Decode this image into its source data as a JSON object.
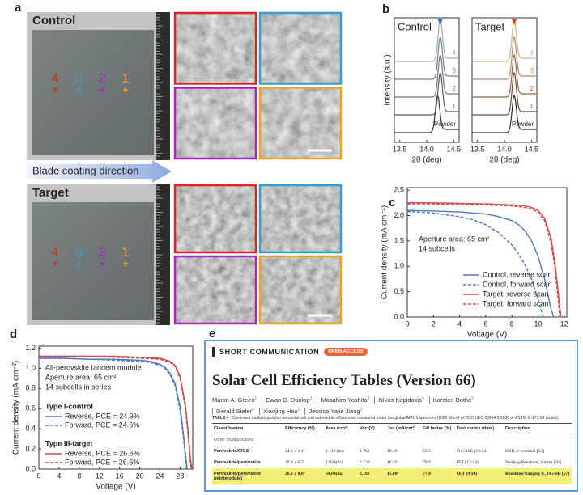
{
  "panel_labels": [
    "a",
    "b",
    "c",
    "d",
    "e"
  ],
  "panel_a": {
    "control": "Control",
    "target": "Target",
    "points": [
      "4",
      "3",
      "2",
      "1"
    ],
    "point_colors": [
      "#e0241f",
      "#2f9fd8",
      "#a624c8",
      "#f0a21e"
    ],
    "arrow": "Blade coating direction"
  },
  "chart_data": [
    {
      "type": "spectra",
      "title": "Control",
      "xlabel": "2θ (deg)",
      "ylabel": "Intensity (a.u.)",
      "xlim": [
        13.4,
        14.6
      ],
      "xticks": [
        13.5,
        {
          "value": 14,
          "label": "14.0"
        },
        14.5
      ],
      "marker": {
        "x": 14.25,
        "color": "#3a6fd8"
      },
      "series": [
        {
          "name": "Powder",
          "color": "#333333",
          "peak": 14.2
        },
        {
          "name": "1",
          "color": "#5a5a5a",
          "peak": 14.25
        },
        {
          "name": "2",
          "color": "#7a6f88",
          "peak": 14.25
        },
        {
          "name": "3",
          "color": "#6c7f98",
          "peak": 14.25
        },
        {
          "name": "4",
          "color": "#a8a8a8",
          "peak": 14.25
        }
      ]
    },
    {
      "type": "spectra",
      "title": "Target",
      "xlabel": "2θ (deg)",
      "xlim": [
        13.4,
        14.6
      ],
      "xticks": [
        13.5,
        {
          "value": 14,
          "label": "14.0"
        },
        14.5
      ],
      "marker": {
        "x": 14.18,
        "color": "#e0403a"
      },
      "series": [
        {
          "name": "Powder",
          "color": "#2a2a2a",
          "peak": 14.18
        },
        {
          "name": "1",
          "color": "#6e4a3a",
          "peak": 14.18
        },
        {
          "name": "2",
          "color": "#93634a",
          "peak": 14.18
        },
        {
          "name": "3",
          "color": "#b58a6a",
          "peak": 14.18
        },
        {
          "name": "4",
          "color": "#d4b48e",
          "peak": 14.18
        }
      ]
    },
    {
      "type": "line",
      "xlabel": "Voltage (V)",
      "ylabel": "Current density (mA cm⁻²)",
      "xlim": [
        0,
        12.2
      ],
      "xticks": [
        0,
        2,
        4,
        6,
        8,
        10,
        12
      ],
      "ylim": [
        0,
        2.55
      ],
      "yticks": [
        {
          "value": 0,
          "label": "0.0"
        },
        0.5,
        {
          "value": 1,
          "label": "1.0"
        },
        1.5,
        {
          "value": 2,
          "label": "2.0"
        },
        2.5
      ],
      "annotations": [
        "Aperture area: 65 cm²",
        "14 subcells"
      ],
      "legend": "lower right",
      "series": [
        {
          "name": "Control, reverse scan",
          "color": "#4a78c0",
          "dash": false,
          "x": [
            0,
            2,
            4,
            6,
            7,
            8,
            8.5,
            9,
            9.5,
            10,
            10.5,
            11,
            11.2
          ],
          "values": [
            2.1,
            2.09,
            2.07,
            2.03,
            1.98,
            1.9,
            1.82,
            1.7,
            1.5,
            1.2,
            0.75,
            0.15,
            0
          ]
        },
        {
          "name": "Control, forward scan",
          "color": "#4a78c0",
          "dash": true,
          "x": [
            0,
            2,
            4,
            5,
            6,
            7,
            8,
            8.5,
            9,
            9.5,
            10,
            10.4
          ],
          "values": [
            2.08,
            2.05,
            1.98,
            1.92,
            1.82,
            1.66,
            1.42,
            1.25,
            1.03,
            0.75,
            0.35,
            0
          ]
        },
        {
          "name": "Target, reverse scan",
          "color": "#d04a4a",
          "dash": false,
          "x": [
            0,
            2,
            4,
            6,
            8,
            9,
            9.5,
            10,
            10.5,
            11,
            11.3,
            11.6,
            11.75
          ],
          "values": [
            2.25,
            2.25,
            2.24,
            2.23,
            2.21,
            2.19,
            2.16,
            2.1,
            1.95,
            1.55,
            1.05,
            0.35,
            0
          ]
        },
        {
          "name": "Target, forward scan",
          "color": "#d04a4a",
          "dash": true,
          "x": [
            0,
            2,
            4,
            6,
            8,
            9,
            9.5,
            10,
            10.5,
            11,
            11.3,
            11.5,
            11.65
          ],
          "values": [
            2.23,
            2.23,
            2.22,
            2.21,
            2.19,
            2.16,
            2.13,
            2.06,
            1.9,
            1.45,
            0.95,
            0.45,
            0
          ]
        }
      ]
    },
    {
      "type": "line",
      "xlabel": "Voltage (V)",
      "ylabel": "Current density (mA cm⁻²)",
      "xlim": [
        0,
        30.5
      ],
      "xticks": [
        0,
        4,
        8,
        12,
        16,
        20,
        24,
        28
      ],
      "ylim": [
        0,
        1.22
      ],
      "yticks": [
        {
          "value": 0,
          "label": "0.0"
        },
        0.2,
        0.4,
        0.6,
        0.8,
        {
          "value": 1,
          "label": "1.0"
        },
        1.2
      ],
      "annotations": [
        "All-perovskite tandem module",
        "Aperture area: 65 cm²",
        "14 subcells in series"
      ],
      "legend": "upper left",
      "legend_groups": [
        "Type I-control",
        "Type III-target"
      ],
      "series": [
        {
          "name": "Reverse, PCE = 24.9%",
          "color": "#4a78c0",
          "dash": false,
          "x": [
            0,
            5,
            10,
            15,
            20,
            22,
            24,
            25,
            26,
            27,
            28,
            28.5,
            29,
            29.4
          ],
          "values": [
            1.1,
            1.1,
            1.09,
            1.09,
            1.08,
            1.07,
            1.04,
            1.01,
            0.95,
            0.85,
            0.62,
            0.42,
            0.18,
            0
          ]
        },
        {
          "name": "Forward, PCE = 24.6%",
          "color": "#4a78c0",
          "dash": true,
          "x": [
            0,
            5,
            10,
            15,
            20,
            22,
            24,
            25,
            26,
            27,
            28,
            28.5,
            29,
            29.3
          ],
          "values": [
            1.1,
            1.1,
            1.09,
            1.08,
            1.07,
            1.06,
            1.03,
            1.0,
            0.94,
            0.83,
            0.58,
            0.38,
            0.14,
            0
          ]
        },
        {
          "name": "Reverse, PCE = 26.6%",
          "color": "#d04a4a",
          "dash": false,
          "x": [
            0,
            5,
            10,
            15,
            20,
            24,
            26,
            27,
            28,
            29,
            29.5,
            30,
            30.3
          ],
          "values": [
            1.12,
            1.12,
            1.12,
            1.12,
            1.11,
            1.1,
            1.07,
            1.03,
            0.92,
            0.65,
            0.42,
            0.12,
            0
          ]
        },
        {
          "name": "Forward, PCE = 26.6%",
          "color": "#d04a4a",
          "dash": true,
          "x": [
            0,
            5,
            10,
            15,
            20,
            24,
            26,
            27,
            28,
            29,
            29.5,
            30,
            30.2
          ],
          "values": [
            1.12,
            1.12,
            1.12,
            1.11,
            1.1,
            1.09,
            1.06,
            1.02,
            0.9,
            0.62,
            0.38,
            0.08,
            0
          ]
        }
      ]
    }
  ],
  "panel_e": {
    "section": "SHORT COMMUNICATION",
    "badge": "OPEN ACCESS",
    "title": "Solar Cell Efficiency Tables (Version 66)",
    "authors": [
      {
        "name": "Martin A. Green",
        "affil": "1"
      },
      {
        "name": "Ewan D. Dunlop",
        "affil": "2"
      },
      {
        "name": "Masahiro Yoshita",
        "affil": "3"
      },
      {
        "name": "Nikos Kopidakis",
        "affil": "4"
      },
      {
        "name": "Karsten Bothe",
        "affil": "5"
      },
      {
        "name": "Gerald Siefer",
        "affil": "6"
      },
      {
        "name": "Xiaojing Hao",
        "affil": "1"
      },
      {
        "name": "Jessica Yajie Jiang",
        "affil": "1"
      }
    ],
    "caption_label": "TABLE 4",
    "caption": "Confirmed multiple-junction terrestrial cell and submodule efficiencies measured under the global AM1.5 spectrum (1000 W/m²) at 25°C (IEC 60904-3:2008 or ASTM G-173-03 global).",
    "table": {
      "columns": [
        "Classification",
        "Efficiency (%)",
        "Area (cm²)",
        "Voc (V)",
        "Jsc (mA/cm²)",
        "Fill factor (%)",
        "Test centre (date)",
        "Description"
      ],
      "group": "Other multijunctions",
      "rows": [
        {
          "highlight": false,
          "cells": [
            "Perovskite/CIGS",
            "24.6 ± 1.1ᵇ",
            "1.110 (da)",
            "1.762",
            "19.28ᶜ",
            "72.5",
            "FhG-ISE (12/24)",
            "HZB, 2-terminal [53]"
          ]
        },
        {
          "highlight": false,
          "cells": [
            "Perovskite/perovskite",
            "28.2 ± 0.5ᵇ",
            "1.038(da)",
            "2.139",
            "16.59",
            "79.9",
            "JET (12/22)",
            "Nanjing/Renshine, 2-term [56]"
          ]
        },
        {
          "highlight": true,
          "cells": [
            "Perovskite/perovskite (minimodule)",
            "26.2 ± 0.6ᵇ",
            "64.04(da)",
            "2.182",
            "15.60ᶜ",
            "77.4",
            "JET (9/24)",
            "Renshine/Nanjing U, 14 cells [57]"
          ]
        }
      ]
    }
  }
}
